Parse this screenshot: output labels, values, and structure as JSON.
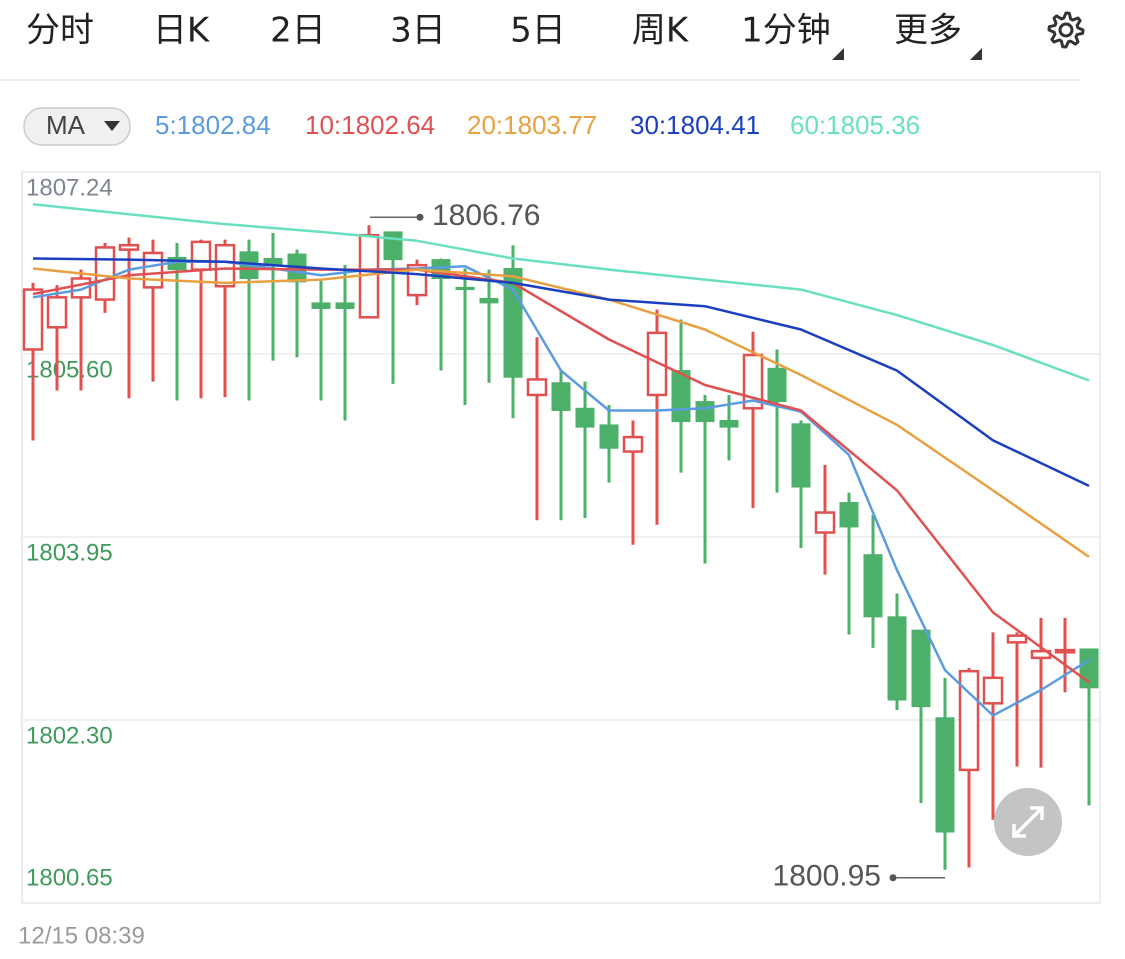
{
  "tabs": [
    "分时",
    "日K",
    "2日",
    "3日",
    "5日",
    "周K",
    "1分钟",
    "更多"
  ],
  "active_tab_index": 6,
  "ma_button": "MA",
  "time_label": "12/15 08:39",
  "chart_data": {
    "type": "candlestick",
    "ylim": [
      1800.65,
      1807.24
    ],
    "yticks": [
      1807.24,
      {
        "value": 1805.6,
        "label": "1805.60"
      },
      1803.95,
      {
        "value": 1802.3,
        "label": "1802.30"
      },
      1800.65
    ],
    "grid": true,
    "up_color": "#e05050",
    "down_color": "#4caf6a",
    "max_label": 1806.76,
    "min_label": 1800.95,
    "open": [
      1805.64,
      1805.84,
      1806.11,
      1806.09,
      1806.54,
      1806.2,
      1806.47,
      1806.36,
      1806.21,
      1806.52,
      1806.46,
      1806.5,
      1806.06,
      1806.06,
      1805.93,
      1806.7,
      1806.13,
      1806.45,
      1806.2,
      1806.1,
      1806.37,
      1805.23,
      1805.34,
      1805.11,
      1804.96,
      1804.72,
      1805.23,
      1805.45,
      1805.17,
      1805.0,
      1805.11,
      1805.47,
      1804.97,
      1803.99,
      1804.26,
      1803.79,
      1803.23,
      1803.11,
      1802.32,
      1801.85,
      1802.45,
      1803.0,
      1802.86,
      1802.91,
      1802.94
    ],
    "high": [
      1806.24,
      1806.22,
      1806.36,
      1806.6,
      1806.65,
      1806.63,
      1806.6,
      1806.63,
      1806.63,
      1806.63,
      1806.69,
      1806.54,
      1806.27,
      1806.4,
      1806.76,
      1806.7,
      1806.45,
      1806.46,
      1806.37,
      1806.36,
      1806.58,
      1805.75,
      1805.45,
      1805.35,
      1805.14,
      1805.0,
      1806.0,
      1805.91,
      1805.23,
      1805.23,
      1805.8,
      1805.64,
      1805.0,
      1804.6,
      1804.35,
      1804.15,
      1803.44,
      1803.11,
      1802.68,
      1802.77,
      1803.09,
      1803.09,
      1803.22,
      1803.22,
      1802.94
    ],
    "low": [
      1804.82,
      1805.27,
      1805.27,
      1805.97,
      1805.2,
      1805.35,
      1805.18,
      1805.2,
      1805.21,
      1805.18,
      1805.54,
      1805.57,
      1805.18,
      1805.0,
      1805.93,
      1805.33,
      1806.04,
      1805.45,
      1805.14,
      1805.34,
      1805.02,
      1804.1,
      1804.1,
      1804.12,
      1804.44,
      1803.88,
      1804.06,
      1804.53,
      1803.71,
      1804.64,
      1804.21,
      1804.35,
      1803.85,
      1803.61,
      1803.07,
      1802.95,
      1802.39,
      1801.55,
      1800.95,
      1800.97,
      1801.4,
      1801.88,
      1801.87,
      1802.55,
      1801.53
    ],
    "close": [
      1806.18,
      1806.11,
      1806.28,
      1806.56,
      1806.58,
      1806.51,
      1806.36,
      1806.61,
      1806.58,
      1806.28,
      1806.4,
      1806.25,
      1806.01,
      1806.01,
      1806.67,
      1806.45,
      1806.4,
      1806.28,
      1806.18,
      1806.06,
      1805.39,
      1805.37,
      1805.09,
      1804.94,
      1804.75,
      1804.85,
      1805.79,
      1804.99,
      1804.99,
      1804.94,
      1805.59,
      1805.17,
      1804.4,
      1804.17,
      1804.04,
      1803.23,
      1802.48,
      1802.42,
      1801.29,
      1802.74,
      1802.68,
      1803.06,
      1802.92,
      1802.93,
      1802.59
    ],
    "series": [
      {
        "name": "5:1802.84",
        "color": "#5b9be0",
        "x": [
          0,
          2,
          4,
          6,
          8,
          10,
          12,
          14,
          16,
          18,
          20,
          22,
          24,
          26,
          28,
          30,
          32,
          34,
          36,
          38,
          40,
          42,
          44
        ],
        "values": [
          1806.11,
          1806.18,
          1806.36,
          1806.43,
          1806.43,
          1806.37,
          1806.31,
          1806.36,
          1806.37,
          1806.39,
          1806.18,
          1805.45,
          1805.09,
          1805.09,
          1805.11,
          1805.18,
          1805.08,
          1804.69,
          1803.65,
          1802.75,
          1802.34,
          1802.57,
          1802.84
        ]
      },
      {
        "name": "10:1802.64",
        "color": "#e05050",
        "x": [
          0,
          4,
          8,
          12,
          16,
          20,
          24,
          28,
          32,
          36,
          40,
          44
        ],
        "values": [
          1806.14,
          1806.31,
          1806.37,
          1806.36,
          1806.36,
          1806.24,
          1805.73,
          1805.32,
          1805.09,
          1804.37,
          1803.27,
          1802.64
        ]
      },
      {
        "name": "20:1803.77",
        "color": "#e8a040",
        "x": [
          0,
          4,
          8,
          12,
          16,
          20,
          24,
          28,
          32,
          36,
          40,
          44
        ],
        "values": [
          1806.37,
          1806.28,
          1806.24,
          1806.27,
          1806.36,
          1806.3,
          1806.09,
          1805.82,
          1805.41,
          1804.96,
          1804.37,
          1803.77
        ]
      },
      {
        "name": "30:1804.41",
        "color": "#1a3fbf",
        "x": [
          0,
          4,
          8,
          12,
          16,
          20,
          24,
          28,
          32,
          36,
          40,
          44
        ],
        "values": [
          1806.46,
          1806.45,
          1806.43,
          1806.37,
          1806.32,
          1806.24,
          1806.09,
          1806.03,
          1805.82,
          1805.45,
          1804.82,
          1804.41
        ]
      },
      {
        "name": "60:1805.36",
        "color": "#6be0c0",
        "x": [
          0,
          4,
          8,
          12,
          16,
          20,
          24,
          28,
          32,
          36,
          40,
          44
        ],
        "values": [
          1806.95,
          1806.86,
          1806.77,
          1806.7,
          1806.62,
          1806.46,
          1806.36,
          1806.27,
          1806.18,
          1805.95,
          1805.68,
          1805.36
        ]
      }
    ]
  }
}
